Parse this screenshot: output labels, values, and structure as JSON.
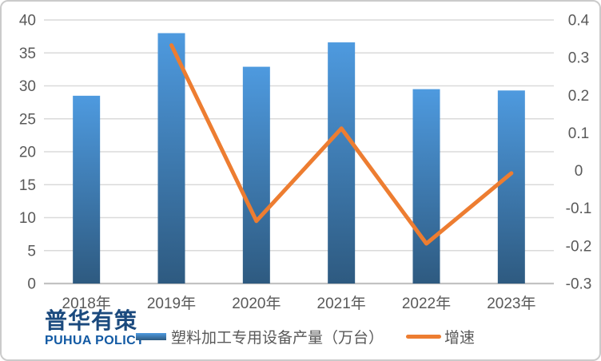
{
  "chart_data": {
    "type": "combo-bar-line",
    "categories": [
      "2018年",
      "2019年",
      "2020年",
      "2021年",
      "2022年",
      "2023年"
    ],
    "series": [
      {
        "name": "塑料加工专用设备产量（万台）",
        "chart_type": "bar",
        "axis": "left",
        "values": [
          28.5,
          38.0,
          32.9,
          36.6,
          29.5,
          29.3
        ]
      },
      {
        "name": "增速",
        "chart_type": "line",
        "axis": "right",
        "values": [
          null,
          0.333,
          -0.134,
          0.112,
          -0.194,
          -0.007
        ]
      }
    ],
    "left_axis": {
      "min": 0,
      "max": 40,
      "step": 5,
      "tick_labels": [
        "40",
        "35",
        "30",
        "25",
        "20",
        "15",
        "10",
        "5",
        "0"
      ]
    },
    "right_axis": {
      "min": -0.3,
      "max": 0.4,
      "step": 0.1,
      "tick_labels": [
        "0.4",
        "0.3",
        "0.2",
        "0.1",
        "0",
        "-0.1",
        "-0.2",
        "-0.3"
      ]
    },
    "grid": true,
    "legend_position": "bottom",
    "colors": {
      "bar_top": "#4E9ADF",
      "bar_bottom": "#2E5A80",
      "line": "#ED7D31",
      "grid": "#DADADA",
      "axis_line": "#C2C2C2",
      "tick_text": "#595959"
    }
  },
  "legend": {
    "bar_label": "塑料加工专用设备产量（万台）",
    "line_label": "增速"
  },
  "logo": {
    "cn": "普华有策",
    "en": "PUHUA POLICY",
    "cn_color": "#1B4A7E",
    "en_color": "#1159A3"
  }
}
